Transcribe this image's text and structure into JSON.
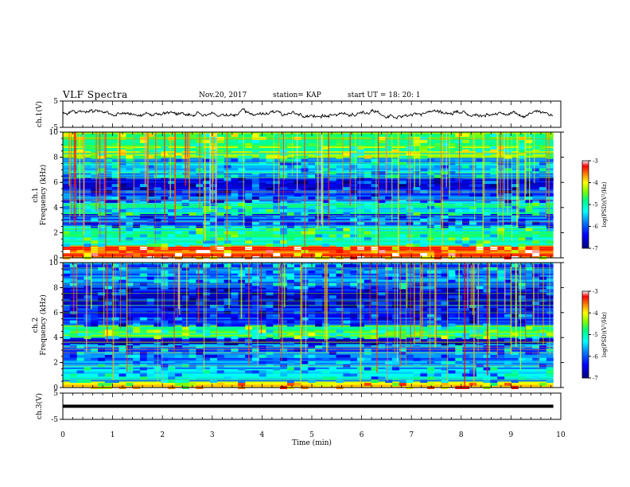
{
  "header": {
    "title": "VLF Spectra",
    "date": "Nov.20, 2017",
    "station": "station= KAP",
    "start": "start  UT  =   18: 20: 1"
  },
  "colors": {
    "spectrogram_scale": [
      "#000080",
      "#0000ff",
      "#0080ff",
      "#00ffff",
      "#00ff80",
      "#80ff00",
      "#ffff00",
      "#ff8000",
      "#ff0000",
      "#ffffff"
    ]
  },
  "chart_data": [
    {
      "type": "line",
      "panel": "ch1-waveform",
      "ylabel": "ch.1(V)",
      "ylim": [
        -5,
        5
      ],
      "ytick_labels": [
        "-5",
        "5"
      ],
      "x_range_min": [
        0,
        9.85
      ],
      "description_values": "noisy waveform oscillating roughly between -1.5 V and 2 V"
    },
    {
      "type": "heatmap",
      "panel": "ch1-spectrogram",
      "ylabel": "ch.1\nFrequency (kHz)",
      "ylabel_line1": "ch.1",
      "ylabel_line2": "Frequency (kHz)",
      "ylim": [
        0,
        10
      ],
      "ytick_labels": [
        "0",
        "2",
        "4",
        "6",
        "8",
        "10"
      ],
      "colorbar": {
        "label": "log(PSD)(V²/Hz)",
        "range": [
          -7,
          -3
        ],
        "tick_labels": [
          "-3",
          "-4",
          "-5",
          "-6",
          "-7"
        ]
      },
      "bands": [
        {
          "from": 0,
          "to": 1,
          "level": -3.5
        },
        {
          "from": 1,
          "to": 2.5,
          "level": -5.0
        },
        {
          "from": 2.5,
          "to": 3.5,
          "level": -6.0
        },
        {
          "from": 3.5,
          "to": 4.5,
          "level": -5.2
        },
        {
          "from": 4.5,
          "to": 5,
          "level": -6.0
        },
        {
          "from": 5,
          "to": 6.5,
          "level": -6.3
        },
        {
          "from": 6.5,
          "to": 8,
          "level": -5.5
        },
        {
          "from": 8,
          "to": 10,
          "level": -4.6
        }
      ]
    },
    {
      "type": "heatmap",
      "panel": "ch2-spectrogram",
      "ylabel": "ch.2\nFrequency (kHz)",
      "ylabel_line1": "ch.2",
      "ylabel_line2": "Frequency (kHz)",
      "ylim": [
        0,
        10
      ],
      "ytick_labels": [
        "0",
        "2",
        "4",
        "6",
        "8",
        "10"
      ],
      "colorbar": {
        "label": "log(PSD)(V²/Hz)",
        "range": [
          -7,
          -3
        ],
        "tick_labels": [
          "-3",
          "-4",
          "-5",
          "-6",
          "-7"
        ]
      },
      "bands": [
        {
          "from": 0,
          "to": 0.5,
          "level": -4.0
        },
        {
          "from": 0.5,
          "to": 2,
          "level": -5.5
        },
        {
          "from": 2,
          "to": 3.5,
          "level": -5.8
        },
        {
          "from": 3.5,
          "to": 4,
          "level": -6.5
        },
        {
          "from": 4,
          "to": 5,
          "level": -4.8
        },
        {
          "from": 5,
          "to": 6,
          "level": -6.2
        },
        {
          "from": 6,
          "to": 8,
          "level": -6.4
        },
        {
          "from": 8,
          "to": 10,
          "level": -5.8
        }
      ]
    },
    {
      "type": "line",
      "panel": "ch3-waveform",
      "ylabel": "ch.3(V)",
      "ylim": [
        -5,
        5
      ],
      "ytick_labels": [
        "-5",
        "5"
      ],
      "constant_value": 0,
      "x_range_min": [
        0,
        9.85
      ]
    }
  ],
  "xaxis": {
    "label": "Time  (min)",
    "range": [
      0,
      10
    ],
    "tick_labels": [
      "0",
      "1",
      "2",
      "3",
      "4",
      "5",
      "6",
      "7",
      "8",
      "9",
      "10"
    ]
  }
}
